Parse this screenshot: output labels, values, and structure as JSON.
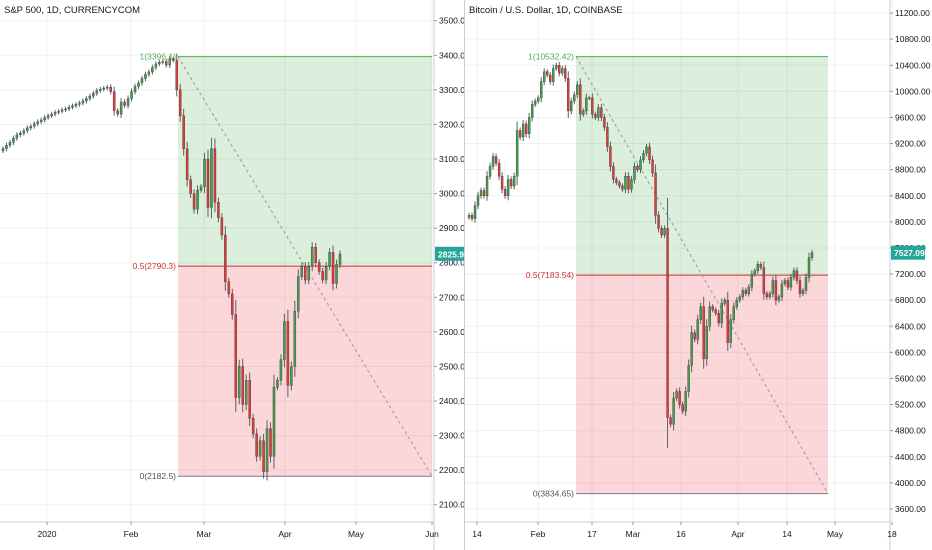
{
  "chart_data": [
    {
      "type": "candlestick",
      "title": "S&P 500, 1D, CURRENCYCOM",
      "ylim": [
        2050,
        3560
      ],
      "y_ticks": [
        "2100.0",
        "2200.0",
        "2300.0",
        "2400.0",
        "2500.0",
        "2600.0",
        "2700.0",
        "2800.0",
        "2900.0",
        "3000.0",
        "3100.0",
        "3200.0",
        "3300.0",
        "3400.0",
        "3500.0"
      ],
      "y_tick_values": [
        2100,
        2200,
        2300,
        2400,
        2500,
        2600,
        2700,
        2800,
        2900,
        3000,
        3100,
        3200,
        3300,
        3400,
        3500
      ],
      "x_ticks": [
        "2020",
        "Feb",
        "Mar",
        "Apr",
        "May",
        "Jun"
      ],
      "x_tick_positions": [
        47,
        131,
        204,
        285,
        356,
        432
      ],
      "price_label": "2825.9",
      "price_value": 2825.9,
      "fib": {
        "top_label": "1(3396.1)",
        "top": 3396.1,
        "mid_label": "0.5(2790.3)",
        "mid": 2790.3,
        "bottom_label": "0(2182.5)",
        "bottom": 2182.5
      },
      "closes": [
        3130,
        3140,
        3148,
        3160,
        3170,
        3175,
        3182,
        3190,
        3195,
        3202,
        3208,
        3213,
        3220,
        3225,
        3230,
        3235,
        3238,
        3242,
        3245,
        3250,
        3254,
        3258,
        3262,
        3268,
        3275,
        3282,
        3290,
        3298,
        3302,
        3305,
        3308,
        3295,
        3240,
        3230,
        3265,
        3255,
        3275,
        3295,
        3310,
        3320,
        3333,
        3345,
        3352,
        3365,
        3375,
        3380,
        3382,
        3372,
        3390,
        3386,
        3300,
        3225,
        3130,
        3040,
        3000,
        2955,
        3010,
        3020,
        3100,
        2960,
        3130,
        2975,
        2930,
        2880,
        2745,
        2710,
        2650,
        2410,
        2500,
        2390,
        2460,
        2350,
        2305,
        2240,
        2285,
        2195,
        2320,
        2240,
        2440,
        2460,
        2520,
        2630,
        2445,
        2500,
        2660,
        2760,
        2790,
        2750,
        2790,
        2845,
        2800,
        2775,
        2750,
        2790,
        2830,
        2740,
        2795,
        2825
      ]
    },
    {
      "type": "candlestick",
      "title": "Bitcoin / U.S. Dollar, 1D, COINBASE",
      "ylim": [
        3400,
        11400
      ],
      "y_ticks": [
        "3600.00",
        "4000.00",
        "4400.00",
        "4800.00",
        "5200.00",
        "5600.00",
        "6000.00",
        "6400.00",
        "6800.00",
        "7200.00",
        "7600.00",
        "8000.00",
        "8400.00",
        "8800.00",
        "9200.00",
        "9600.00",
        "10000.00",
        "10400.00",
        "10800.00",
        "11200.00"
      ],
      "y_tick_values": [
        3600,
        4000,
        4400,
        4800,
        5200,
        5600,
        6000,
        6400,
        6800,
        7200,
        7600,
        8000,
        8400,
        8800,
        9200,
        9600,
        10000,
        10400,
        10800,
        11200
      ],
      "x_ticks": [
        "14",
        "Feb",
        "17",
        "Mar",
        "16",
        "Apr",
        "14",
        "May",
        "18"
      ],
      "x_tick_positions": [
        12,
        73,
        127,
        168,
        216,
        273,
        322,
        370,
        427
      ],
      "price_label": "7527.09",
      "price_value": 7527.09,
      "fib": {
        "top_label": "1(10532.42)",
        "top": 10532.42,
        "mid_label": "0.5(7183.54)",
        "mid": 7183.54,
        "bottom_label": "0(3834.65)",
        "bottom": 3834.65
      },
      "closes": [
        8100,
        8050,
        8250,
        8400,
        8480,
        8400,
        8700,
        8850,
        9000,
        8900,
        8700,
        8500,
        8400,
        8650,
        8550,
        8700,
        9400,
        9300,
        9500,
        9350,
        9600,
        9800,
        9850,
        9900,
        10150,
        10300,
        10250,
        10150,
        10350,
        10400,
        10280,
        10350,
        10200,
        9700,
        9850,
        9950,
        10100,
        9650,
        9700,
        9900,
        9900,
        9650,
        9600,
        9750,
        9600,
        9450,
        9150,
        8850,
        8650,
        8600,
        8550,
        8500,
        8700,
        8500,
        8650,
        8850,
        8800,
        8950,
        9050,
        9150,
        8950,
        8750,
        8100,
        7900,
        7800,
        7900,
        5000,
        4900,
        5300,
        5400,
        5200,
        5100,
        5400,
        5800,
        6300,
        6200,
        6500,
        6700,
        5900,
        6400,
        6700,
        6650,
        6600,
        6450,
        6750,
        6800,
        6150,
        6500,
        6700,
        6800,
        6850,
        6950,
        6900,
        7000,
        7200,
        7250,
        7350,
        7300,
        6900,
        6850,
        6900,
        7100,
        6800,
        6850,
        7050,
        7100,
        7000,
        7150,
        7250,
        7100,
        6900,
        6950,
        7150,
        7450,
        7527
      ]
    }
  ]
}
